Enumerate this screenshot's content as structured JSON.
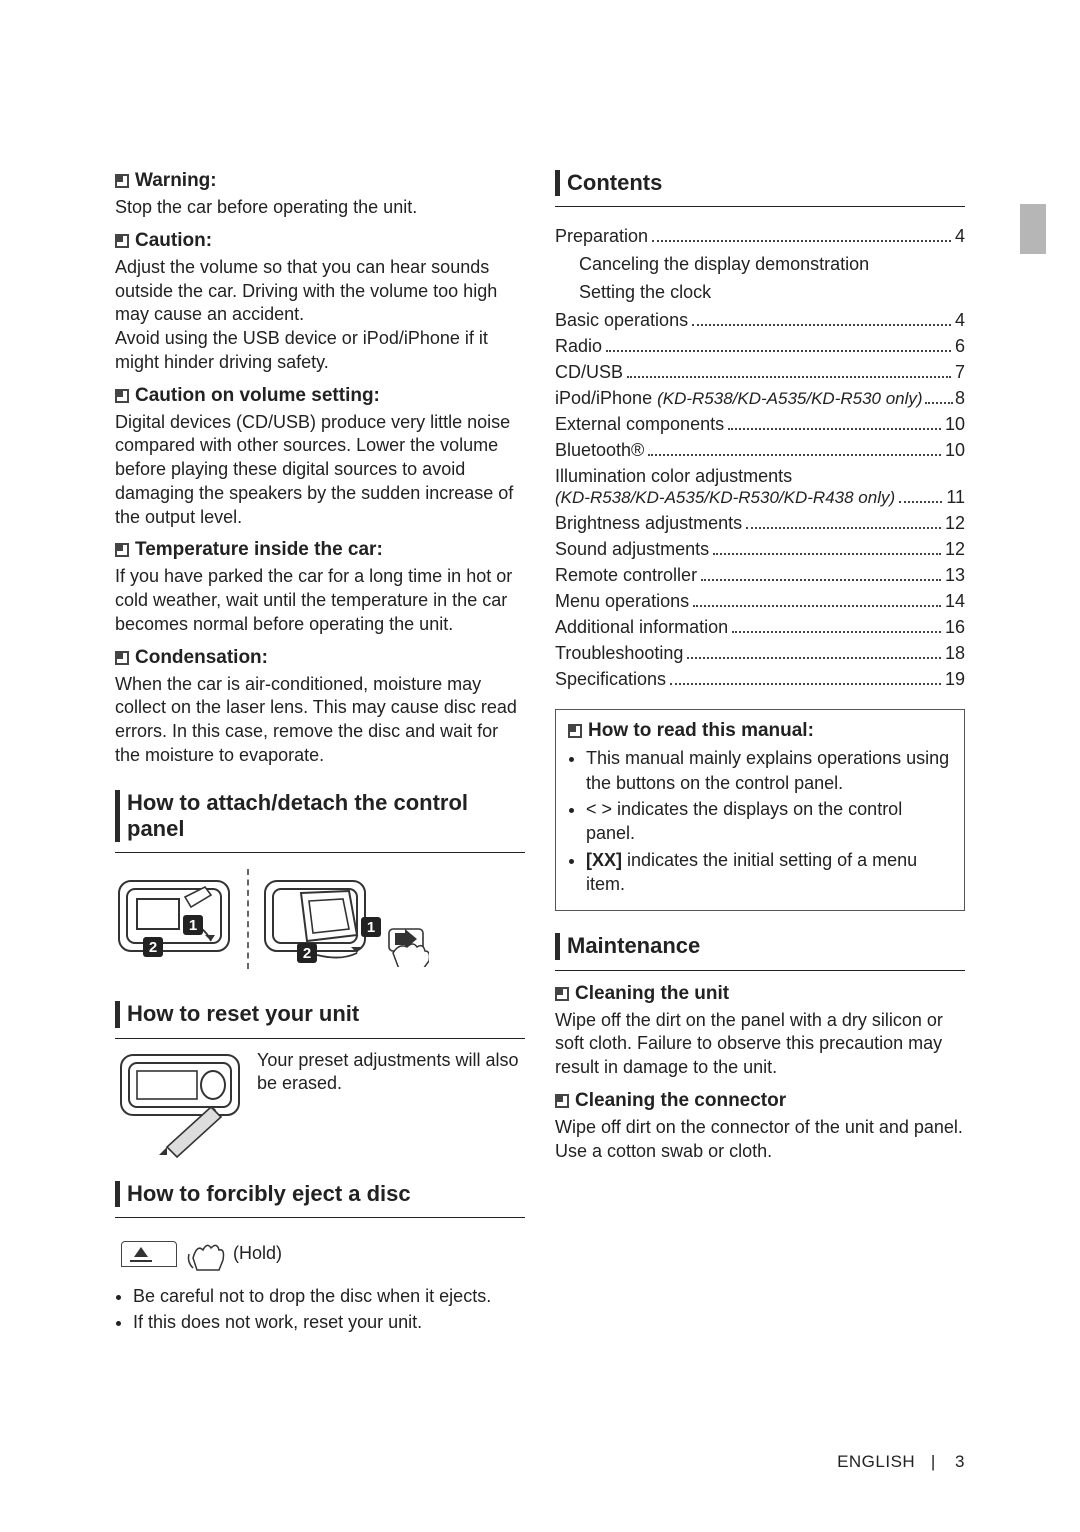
{
  "colors": {
    "text": "#222222",
    "rule": "#222222",
    "tab": "#b6b6b6",
    "border": "#555555"
  },
  "fonts": {
    "body_size": 18,
    "sub_size": 19,
    "sec_size": 22
  },
  "left": {
    "warning": {
      "title": "Warning:",
      "body": "Stop the car before operating the unit."
    },
    "caution": {
      "title": "Caution:",
      "body": "Adjust the volume so that you can hear sounds outside the car. Driving with the volume too high may cause an accident.\nAvoid using the USB device or iPod/iPhone if it might hinder driving safety."
    },
    "volume": {
      "title": "Caution on volume setting:",
      "body": "Digital devices (CD/USB) produce very little noise compared with other sources. Lower the volume before playing these digital sources to avoid damaging the speakers by the sudden increase of the output level."
    },
    "temperature": {
      "title": "Temperature inside the car:",
      "body": "If you have parked the car for a long time in hot or cold weather, wait until the temperature in the car becomes normal before operating the unit."
    },
    "condensation": {
      "title": "Condensation:",
      "body": "When the car is air-conditioned, moisture may collect on the laser lens. This may cause disc read errors. In this case, remove the disc and wait for the moisture to evaporate."
    },
    "attach": {
      "title": "How to attach/detach the control panel"
    },
    "reset": {
      "title": "How to reset your unit",
      "body": "Your preset adjustments will also be erased."
    },
    "eject": {
      "title": "How to forcibly eject a disc",
      "hold": "(Hold)",
      "bullets": [
        "Be careful not to drop the disc when it ejects.",
        "If this does not work, reset your unit."
      ]
    }
  },
  "right": {
    "contents": {
      "title": "Contents",
      "items": [
        {
          "label": "Preparation",
          "page": "4"
        },
        {
          "sub": "Canceling the display demonstration"
        },
        {
          "sub": "Setting the clock"
        },
        {
          "label": "Basic operations",
          "page": "4"
        },
        {
          "label": "Radio",
          "page": "6"
        },
        {
          "label": "CD/USB",
          "page": "7"
        },
        {
          "label": "iPod/iPhone ",
          "note": "(KD-R538/KD-A535/KD-R530 only)",
          "page": "8",
          "tight": true
        },
        {
          "label": "External components",
          "page": "10"
        },
        {
          "label": "Bluetooth®",
          "page": "10"
        },
        {
          "label": "Illumination color adjustments",
          "note_line": "(KD-R538/KD-A535/KD-R530/KD-R438 only)",
          "page": "11"
        },
        {
          "label": "Brightness adjustments",
          "page": "12"
        },
        {
          "label": "Sound adjustments",
          "page": "12"
        },
        {
          "label": "Remote controller",
          "page": "13"
        },
        {
          "label": "Menu operations",
          "page": "14"
        },
        {
          "label": "Additional information",
          "page": "16"
        },
        {
          "label": "Troubleshooting",
          "page": "18"
        },
        {
          "label": "Specifications",
          "page": "19"
        }
      ]
    },
    "read": {
      "title": "How to read this manual:",
      "bullets": [
        "This manual mainly explains operations using the buttons on the control panel.",
        "< > indicates the displays on the control panel.",
        "<b>[XX]</b> indicates the initial setting of a menu item."
      ]
    },
    "maintenance": {
      "title": "Maintenance",
      "cleaning_unit": {
        "title": "Cleaning the unit",
        "body": "Wipe off the dirt on the panel with a dry silicon or soft cloth. Failure to observe this precaution may result in damage to the unit."
      },
      "cleaning_connector": {
        "title": "Cleaning the connector",
        "body": "Wipe off dirt on the connector of the unit and panel. Use a cotton swab or cloth."
      }
    }
  },
  "footer": {
    "lang": "ENGLISH",
    "sep": "|",
    "page": "3"
  }
}
